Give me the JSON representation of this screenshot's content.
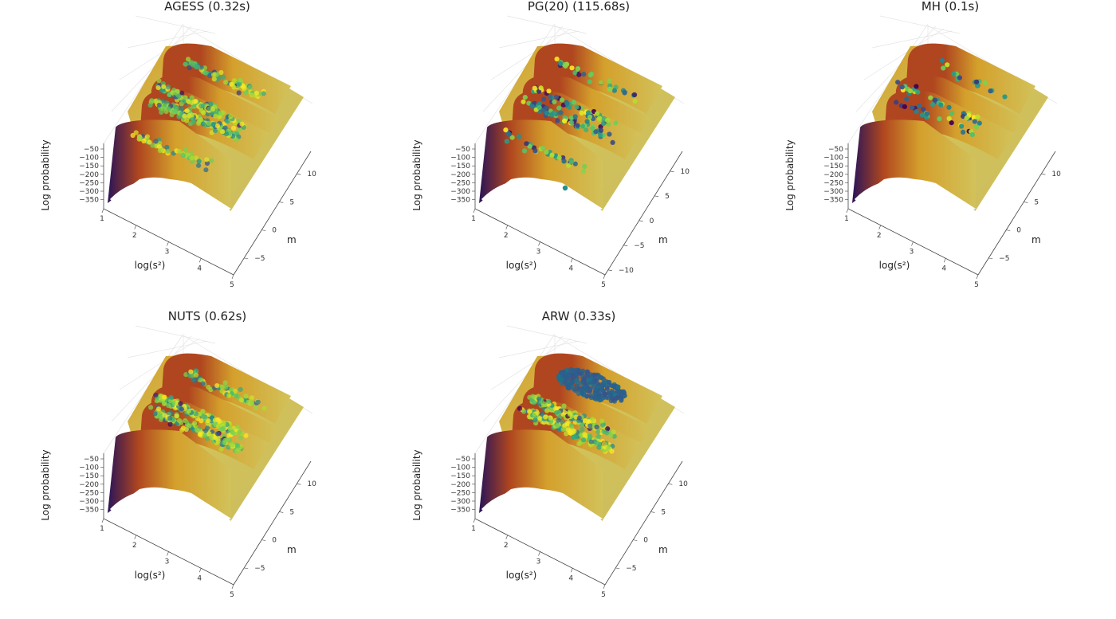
{
  "chart_data": [
    {
      "type": "scatter",
      "title": "AGESS (0.32s)",
      "xlabel": "log(s²)",
      "ylabel": "m",
      "zlabel": "Log probability",
      "x_ticks": [
        "1",
        "2",
        "3",
        "4",
        "5"
      ],
      "y_ticks": [
        "−5",
        "0",
        "5",
        "10"
      ],
      "z_ticks": [
        "−50",
        "−100",
        "−150",
        "−200",
        "−250",
        "−300",
        "−350"
      ],
      "xlim": [
        1,
        5
      ],
      "ylim": [
        -8,
        14
      ],
      "zlim": [
        -350,
        -20
      ],
      "surface": "log-probability over (log(s²), m), four ridges near m = -3, 0, 4, 8",
      "samples_description": "dense cloud covering ridges at m≈0, 4, 8; lighter along m≈-3",
      "samples": {
        "count": 430,
        "m_modes": [
          -3.5,
          0,
          4,
          8
        ],
        "mode_weights": [
          0.12,
          0.34,
          0.36,
          0.18
        ],
        "logs2_range": [
          1.6,
          3.4
        ],
        "spread": 0.9,
        "alpha": 0.75,
        "color_bias": 0.65
      }
    },
    {
      "type": "scatter",
      "title": "PG(20) (115.68s)",
      "xlabel": "log(s²)",
      "ylabel": "m",
      "zlabel": "Log probability",
      "x_ticks": [
        "1",
        "2",
        "3",
        "4",
        "5"
      ],
      "y_ticks": [
        "−10",
        "−5",
        "0",
        "5",
        "10"
      ],
      "z_ticks": [
        "−50",
        "−100",
        "−150",
        "−200",
        "−250",
        "−300",
        "−350"
      ],
      "xlim": [
        1,
        5
      ],
      "ylim": [
        -11,
        14
      ],
      "zlim": [
        -350,
        -20
      ],
      "samples": {
        "count": 190,
        "m_modes": [
          -3.5,
          0,
          4,
          8
        ],
        "mode_weights": [
          0.18,
          0.32,
          0.32,
          0.18
        ],
        "logs2_range": [
          1.5,
          3.8
        ],
        "spread": 1.3,
        "alpha": 0.9,
        "color_bias": 0.5
      },
      "outliers": [
        {
          "logs2": 3.3,
          "m": -9.5
        }
      ]
    },
    {
      "type": "scatter",
      "title": "MH (0.1s)",
      "xlabel": "log(s²)",
      "ylabel": "m",
      "zlabel": "Log probability",
      "x_ticks": [
        "1",
        "2",
        "3",
        "4",
        "5"
      ],
      "y_ticks": [
        "−5",
        "0",
        "5",
        "10"
      ],
      "z_ticks": [
        "−50",
        "−100",
        "−150",
        "−200",
        "−250",
        "−300",
        "−350"
      ],
      "xlim": [
        1,
        5
      ],
      "ylim": [
        -8,
        14
      ],
      "zlim": [
        -350,
        -20
      ],
      "samples": {
        "count": 75,
        "m_modes": [
          0,
          4,
          8
        ],
        "mode_weights": [
          0.35,
          0.45,
          0.2
        ],
        "logs2_range": [
          2.0,
          3.6
        ],
        "spread": 1.6,
        "alpha": 0.95,
        "color_bias": 0.45
      }
    },
    {
      "type": "scatter",
      "title": "NUTS (0.62s)",
      "xlabel": "log(s²)",
      "ylabel": "m",
      "zlabel": "Log probability",
      "x_ticks": [
        "1",
        "2",
        "3",
        "4",
        "5"
      ],
      "y_ticks": [
        "−5",
        "0",
        "5",
        "10"
      ],
      "z_ticks": [
        "−50",
        "−100",
        "−150",
        "−200",
        "−250",
        "−300",
        "−350"
      ],
      "xlim": [
        1,
        5
      ],
      "ylim": [
        -8,
        14
      ],
      "zlim": [
        -350,
        -20
      ],
      "samples": {
        "count": 400,
        "m_modes": [
          0,
          4,
          8
        ],
        "mode_weights": [
          0.4,
          0.4,
          0.2
        ],
        "logs2_range": [
          1.7,
          3.6
        ],
        "spread": 0.9,
        "alpha": 0.75,
        "color_bias": 0.7
      }
    },
    {
      "type": "scatter",
      "title": "ARW (0.33s)",
      "xlabel": "log(s²)",
      "ylabel": "m",
      "zlabel": "Log probability",
      "x_ticks": [
        "1",
        "2",
        "3",
        "4",
        "5"
      ],
      "y_ticks": [
        "−5",
        "0",
        "5",
        "10"
      ],
      "z_ticks": [
        "−50",
        "−100",
        "−150",
        "−200",
        "−250",
        "−300",
        "−350"
      ],
      "xlim": [
        1,
        5
      ],
      "ylim": [
        -8,
        14
      ],
      "zlim": [
        -350,
        -20
      ],
      "samples": {
        "count": 330,
        "m_modes": [
          0,
          4
        ],
        "mode_weights": [
          0.55,
          0.45
        ],
        "logs2_range": [
          1.8,
          3.3
        ],
        "spread": 0.8,
        "alpha": 0.75,
        "color_bias": 0.7
      },
      "blob": {
        "center_logs2": 2.3,
        "center_m": 11.5,
        "count": 260,
        "color": "#2b5f8f"
      }
    }
  ],
  "colors": {
    "surface_high": "#d2c25a",
    "surface_mid": "#d4a02c",
    "surface_low": "#b0461f",
    "surface_deep": "#2a1458",
    "viridis": [
      "#440154",
      "#3b528b",
      "#21918c",
      "#5ec962",
      "#b5de2b",
      "#fde725"
    ]
  }
}
